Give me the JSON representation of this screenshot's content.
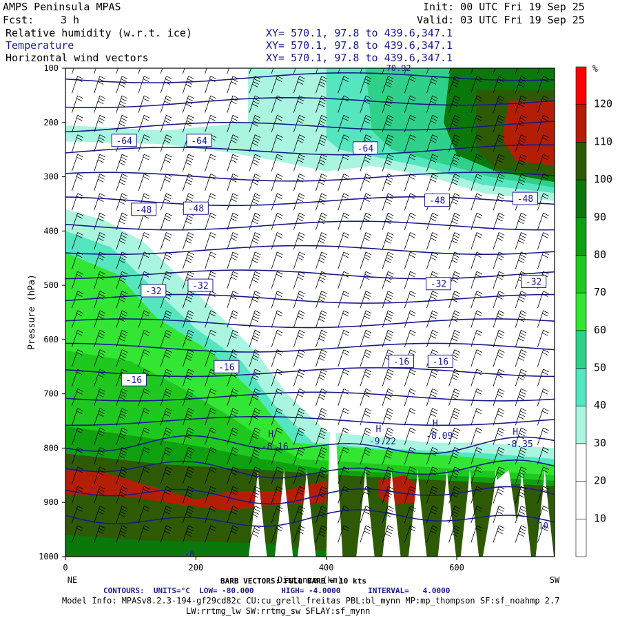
{
  "header": {
    "model": "AMPS Peninsula MPAS",
    "fcst_label": "Fcst:",
    "fcst_value": "3 h",
    "init": "Init: 00 UTC Fri 19 Sep 25",
    "valid": "Valid: 03 UTC Fri 19 Sep 25",
    "fields": [
      {
        "name": "Relative humidity (w.r.t. ice)",
        "xy": "XY= 570.1, 97.8 to 439.6,347.1"
      },
      {
        "name": "Temperature",
        "xy": "XY= 570.1, 97.8 to 439.6,347.1"
      },
      {
        "name": "Horizontal wind vectors",
        "xy": "XY= 570.1, 97.8 to 439.6,347.1"
      }
    ]
  },
  "chart_data": {
    "type": "heatmap",
    "description_fields": [
      "relative humidity shading",
      "temperature contours",
      "wind barbs"
    ],
    "xlabel": "Distance (km)",
    "ylabel": "Pressure (hPa)",
    "xlim": [
      0,
      750
    ],
    "ylim": [
      1000,
      100
    ],
    "x_ticks": [
      0,
      200,
      400,
      600
    ],
    "y_ticks": [
      100,
      200,
      300,
      400,
      500,
      600,
      700,
      800,
      900,
      1000
    ],
    "x_end_labels": {
      "left": "NE",
      "right": "SW"
    },
    "colorbar": {
      "unit": "%",
      "levels": [
        10,
        20,
        30,
        40,
        50,
        60,
        70,
        80,
        90,
        100,
        110,
        120
      ],
      "colors": [
        "#ffffff",
        "#ffffff",
        "#ffffff",
        "#aaf5e0",
        "#55e6c0",
        "#2fd18a",
        "#33e633",
        "#1fc81f",
        "#0fa00f",
        "#0a780a",
        "#2e5a05",
        "#b41e05",
        "#ff0000"
      ]
    },
    "rh_bands": [
      {
        "x": [
          0,
          120,
          240,
          320,
          400,
          480,
          560,
          640,
          750
        ],
        "lower_hi": [
          340,
          380,
          480,
          560,
          640,
          700,
          740,
          740,
          760
        ],
        "color": "#aaf5e0"
      }
    ],
    "temperature_contour_labels": [
      {
        "text": "-64",
        "x": 90,
        "p": 233
      },
      {
        "text": "-64",
        "x": 205,
        "p": 233
      },
      {
        "text": "-64",
        "x": 460,
        "p": 247
      },
      {
        "text": "-48",
        "x": 120,
        "p": 360
      },
      {
        "text": "-48",
        "x": 200,
        "p": 358
      },
      {
        "text": "-48",
        "x": 570,
        "p": 343
      },
      {
        "text": "-48",
        "x": 705,
        "p": 340
      },
      {
        "text": "-32",
        "x": 135,
        "p": 510
      },
      {
        "text": "-32",
        "x": 207,
        "p": 500
      },
      {
        "text": "-32",
        "x": 572,
        "p": 497
      },
      {
        "text": "-32",
        "x": 718,
        "p": 493
      },
      {
        "text": "-16",
        "x": 105,
        "p": 674
      },
      {
        "text": "-16",
        "x": 247,
        "p": 650
      },
      {
        "text": "-16",
        "x": 515,
        "p": 640
      },
      {
        "text": "-16",
        "x": 575,
        "p": 640
      }
    ],
    "highs": [
      {
        "label": "H",
        "value": "-8.16",
        "x": 315,
        "p": 780
      },
      {
        "label": "H",
        "value": "-9.22",
        "x": 480,
        "p": 770
      },
      {
        "label": "H",
        "value": "-8.09",
        "x": 567,
        "p": 760
      },
      {
        "label": "H",
        "value": "-8.35",
        "x": 690,
        "p": 775
      }
    ],
    "top_partial_label": "-70.92",
    "bottom_partial_label": "-8",
    "right_partial_label": "-10",
    "contour_levels_c": [
      -76,
      -72,
      -68,
      -64,
      -60,
      -56,
      -52,
      -48,
      -44,
      -40,
      -36,
      -32,
      -28,
      -24,
      -20,
      -16,
      -12,
      -8,
      -4
    ],
    "terrain_peaks_km": [
      295,
      335,
      370,
      410,
      460,
      500,
      540,
      585,
      620,
      660,
      700,
      735
    ]
  },
  "footer": {
    "barb_info": "BARB VECTORS: FULL BARB = 10 kts",
    "contours": "CONTOURS:  UNITS=°C  LOW= -80.000      HIGH= -4.0000      INTERVAL=   4.0000",
    "model_info_1": "Model Info: MPASv8.2.3-194-gf29cd82c CU:cu_grell_freitas PBL:bl_mynn MP:mp_thompson SF:sf_noahmp 2.7",
    "model_info_2": "LW:rrtmg_lw SW:rrtmg_sw SFLAY:sf_mynn"
  }
}
